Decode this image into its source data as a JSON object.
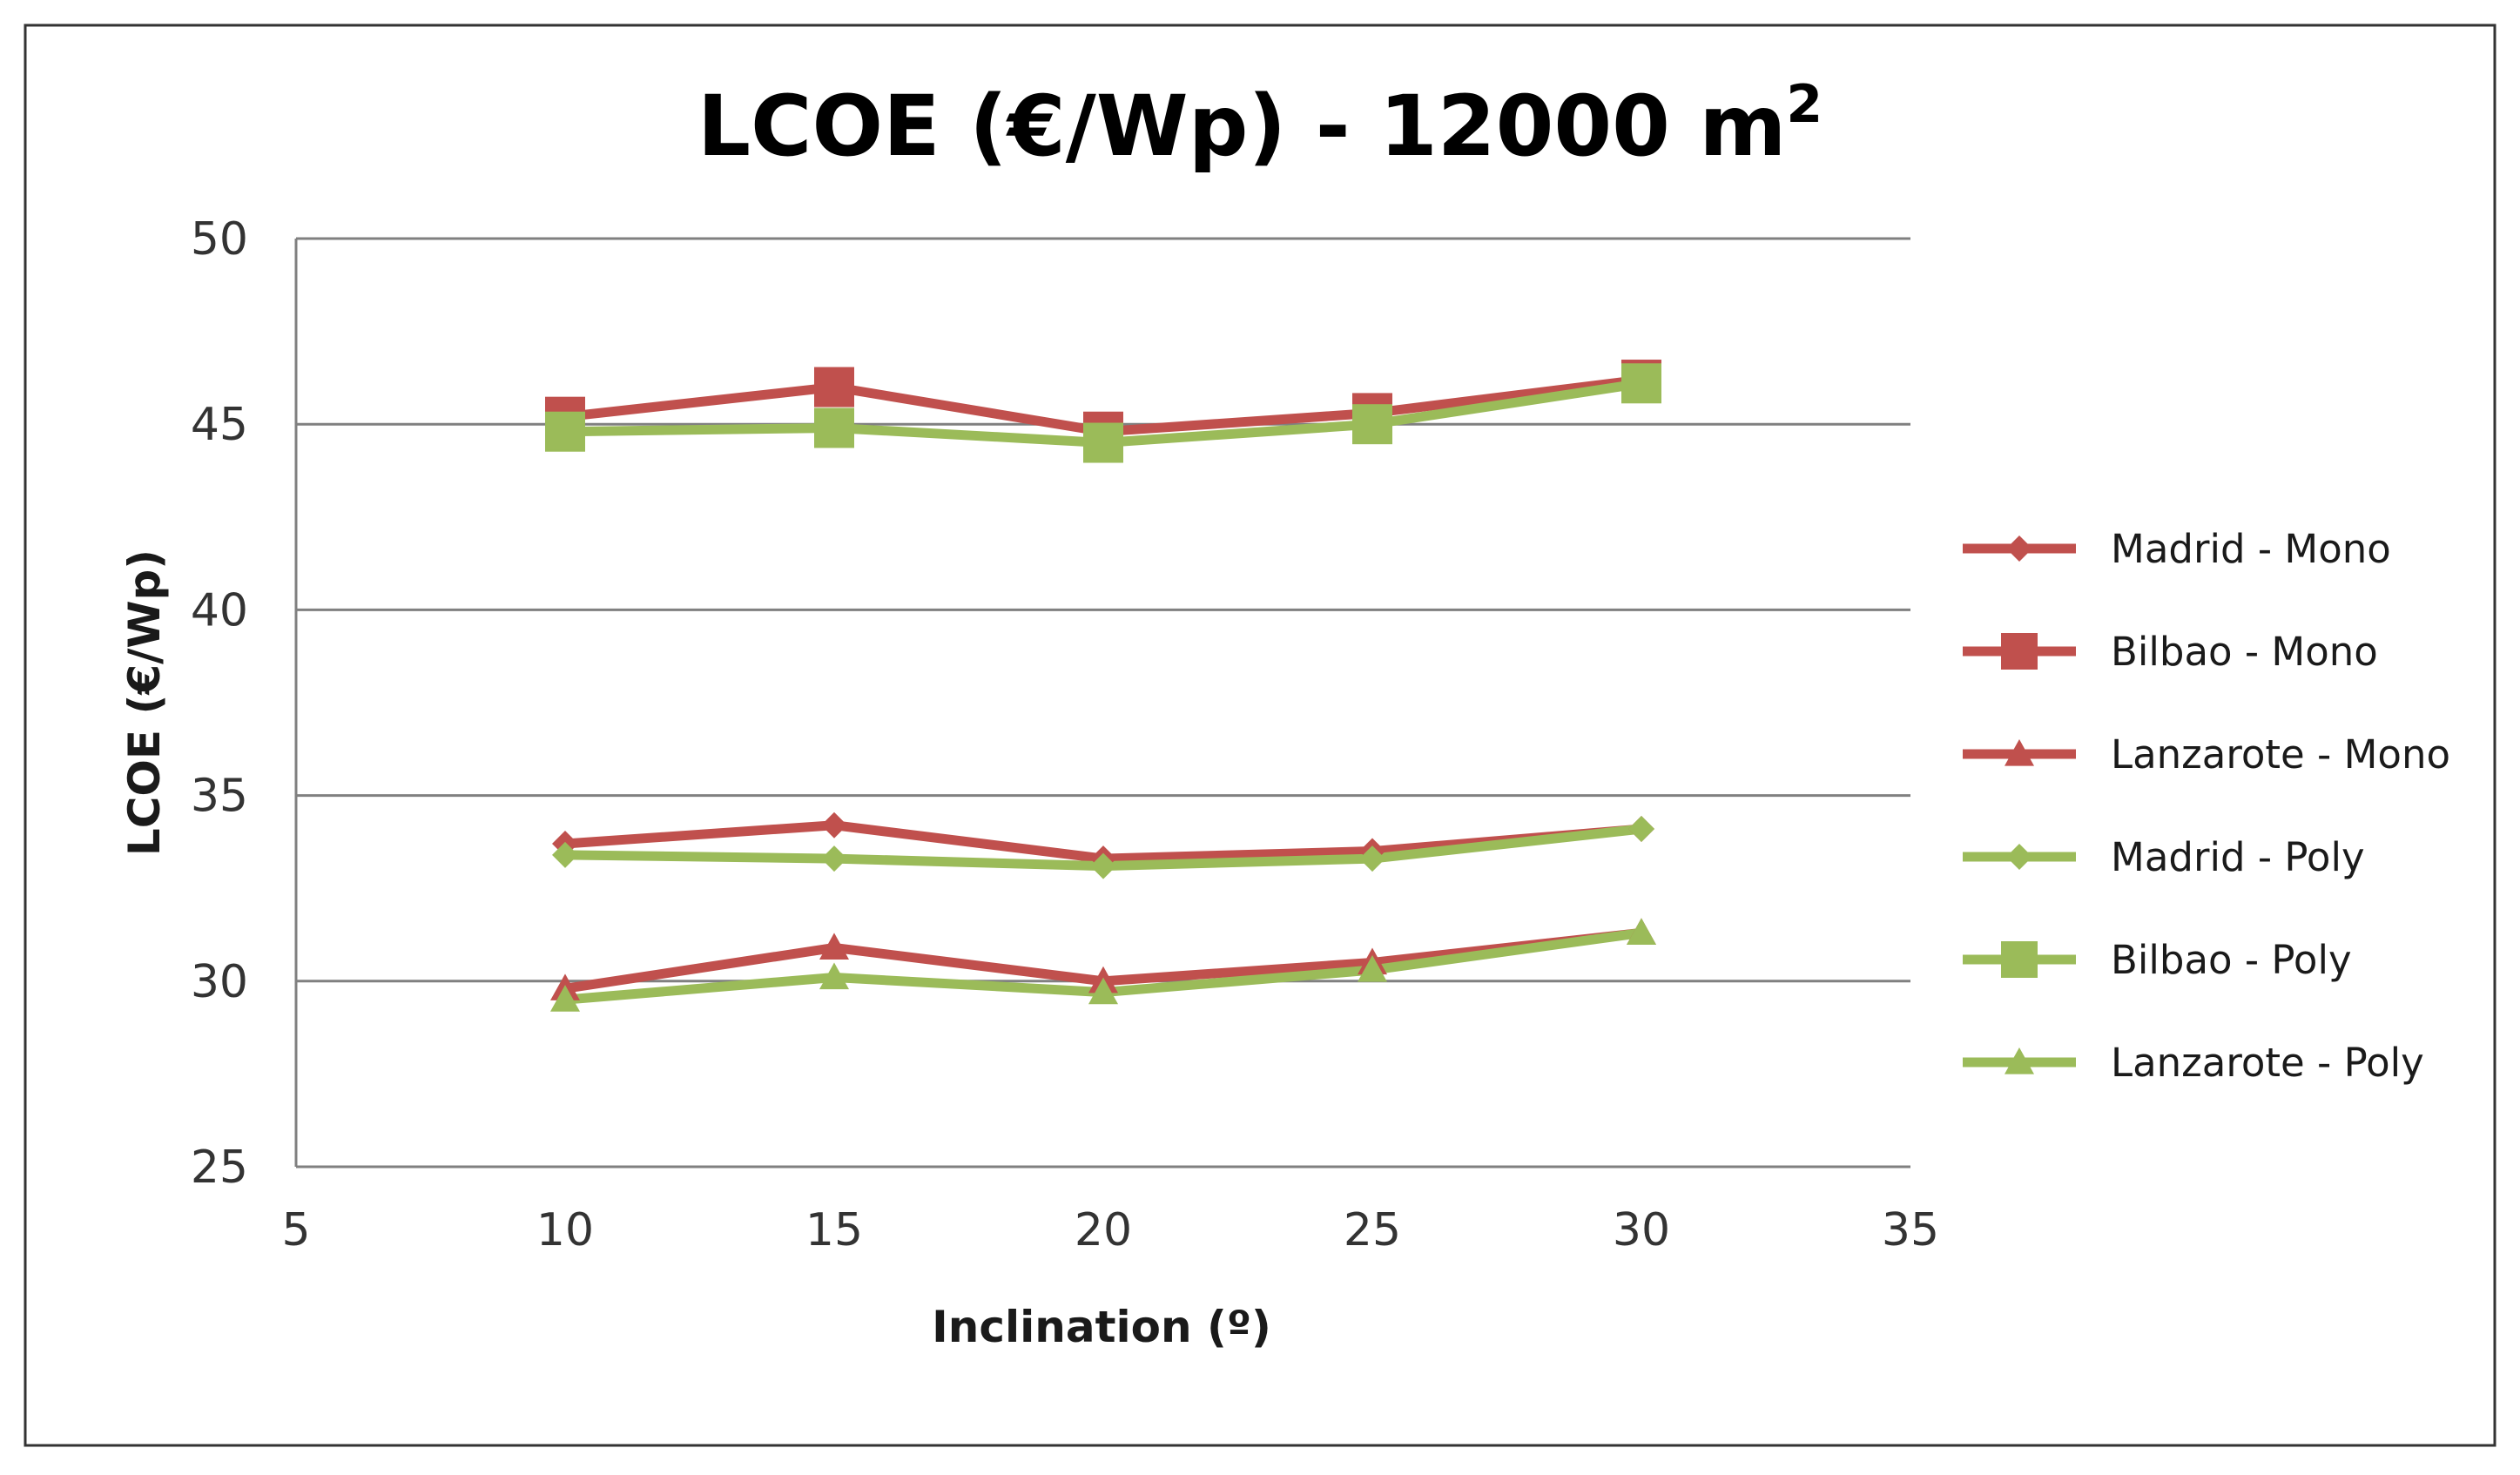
{
  "chart_data": {
    "type": "line",
    "title": "LCOE (€/Wp) - 12000 m",
    "title_superscript": "2",
    "xlabel": "Inclination (º)",
    "ylabel": "LCOE  (€/Wp)",
    "xlim": [
      5,
      35
    ],
    "ylim": [
      25,
      50
    ],
    "xticks": [
      5,
      10,
      15,
      20,
      25,
      30,
      35
    ],
    "yticks": [
      25,
      30,
      35,
      40,
      45,
      50
    ],
    "grid": "horizontal",
    "legend_position": "right",
    "x": [
      10,
      15,
      20,
      25,
      30
    ],
    "series": [
      {
        "name": "Madrid - Mono",
        "marker": "diamond",
        "color": "#C0504D",
        "values": [
          33.7,
          34.2,
          33.3,
          33.5,
          34.1
        ]
      },
      {
        "name": "Bilbao - Mono",
        "marker": "square",
        "color": "#C0504D",
        "values": [
          45.2,
          46.0,
          44.8,
          45.3,
          46.2
        ]
      },
      {
        "name": "Lanzarote - Mono",
        "marker": "triangle",
        "color": "#C0504D",
        "values": [
          29.8,
          30.9,
          30.0,
          30.5,
          31.3
        ]
      },
      {
        "name": "Madrid - Poly",
        "marker": "diamond",
        "color": "#9BBB59",
        "values": [
          33.4,
          33.3,
          33.1,
          33.3,
          34.1
        ]
      },
      {
        "name": "Bilbao - Poly",
        "marker": "square",
        "color": "#9BBB59",
        "values": [
          44.8,
          44.9,
          44.5,
          45.0,
          46.1
        ]
      },
      {
        "name": "Lanzarote - Poly",
        "marker": "triangle",
        "color": "#9BBB59",
        "values": [
          29.5,
          30.1,
          29.7,
          30.3,
          31.3
        ]
      }
    ]
  }
}
